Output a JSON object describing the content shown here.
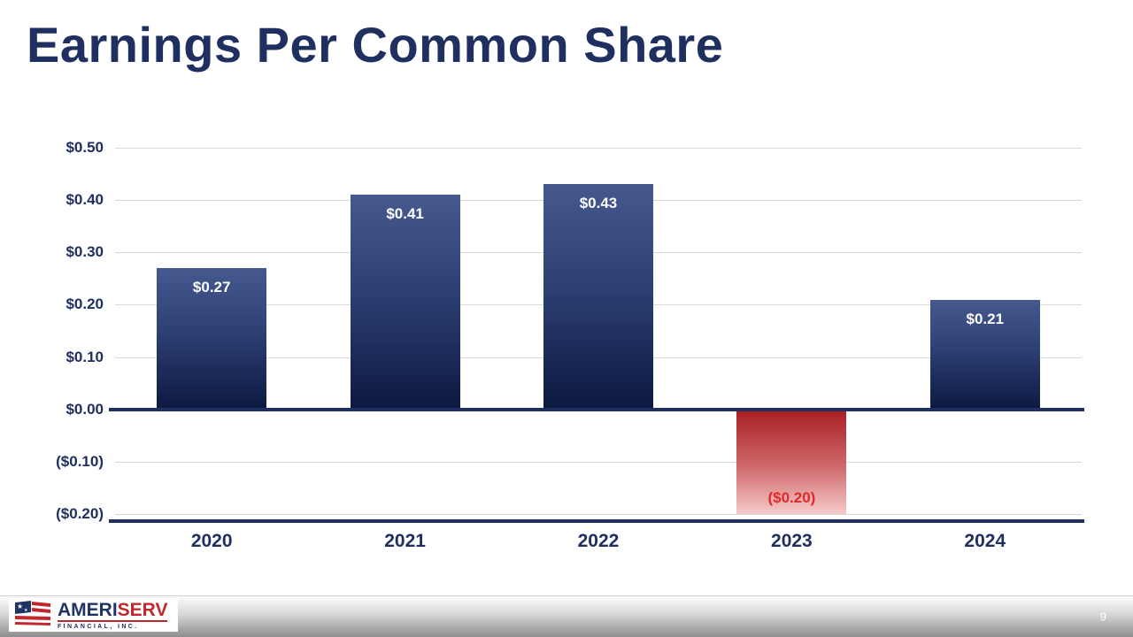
{
  "slide": {
    "title": "Earnings Per Common Share",
    "page_number": "9"
  },
  "footer": {
    "logo": {
      "part1": "AMERI",
      "part2": "SERV",
      "subtext": "FINANCIAL, INC."
    }
  },
  "chart_data": {
    "type": "bar",
    "title": "Earnings Per Common Share",
    "categories": [
      "2020",
      "2021",
      "2022",
      "2023",
      "2024"
    ],
    "values": [
      0.27,
      0.41,
      0.43,
      -0.2,
      0.21
    ],
    "bar_labels": [
      "$0.27",
      "$0.41",
      "$0.43",
      "($0.20)",
      "$0.21"
    ],
    "ylim": [
      -0.2,
      0.5
    ],
    "ytick_step": 0.1,
    "yticks": [
      0.5,
      0.4,
      0.3,
      0.2,
      0.1,
      0.0,
      -0.1,
      -0.2
    ],
    "ytick_labels": [
      "$0.50",
      "$0.40",
      "$0.30",
      "$0.20",
      "$0.10",
      "$0.00",
      "($0.10)",
      "($0.20)"
    ],
    "grid": true,
    "legend": "none",
    "colors": {
      "positive_top": "#46598f",
      "positive_bottom": "#0c1840",
      "negative_top": "#a81d22",
      "negative_bottom": "#f6caca",
      "positive_label": "#ffffff",
      "negative_label": "#e02a2a",
      "axis": "#1f3060",
      "gridline": "#d9d9d9",
      "tick_text": "#1f3060"
    }
  }
}
